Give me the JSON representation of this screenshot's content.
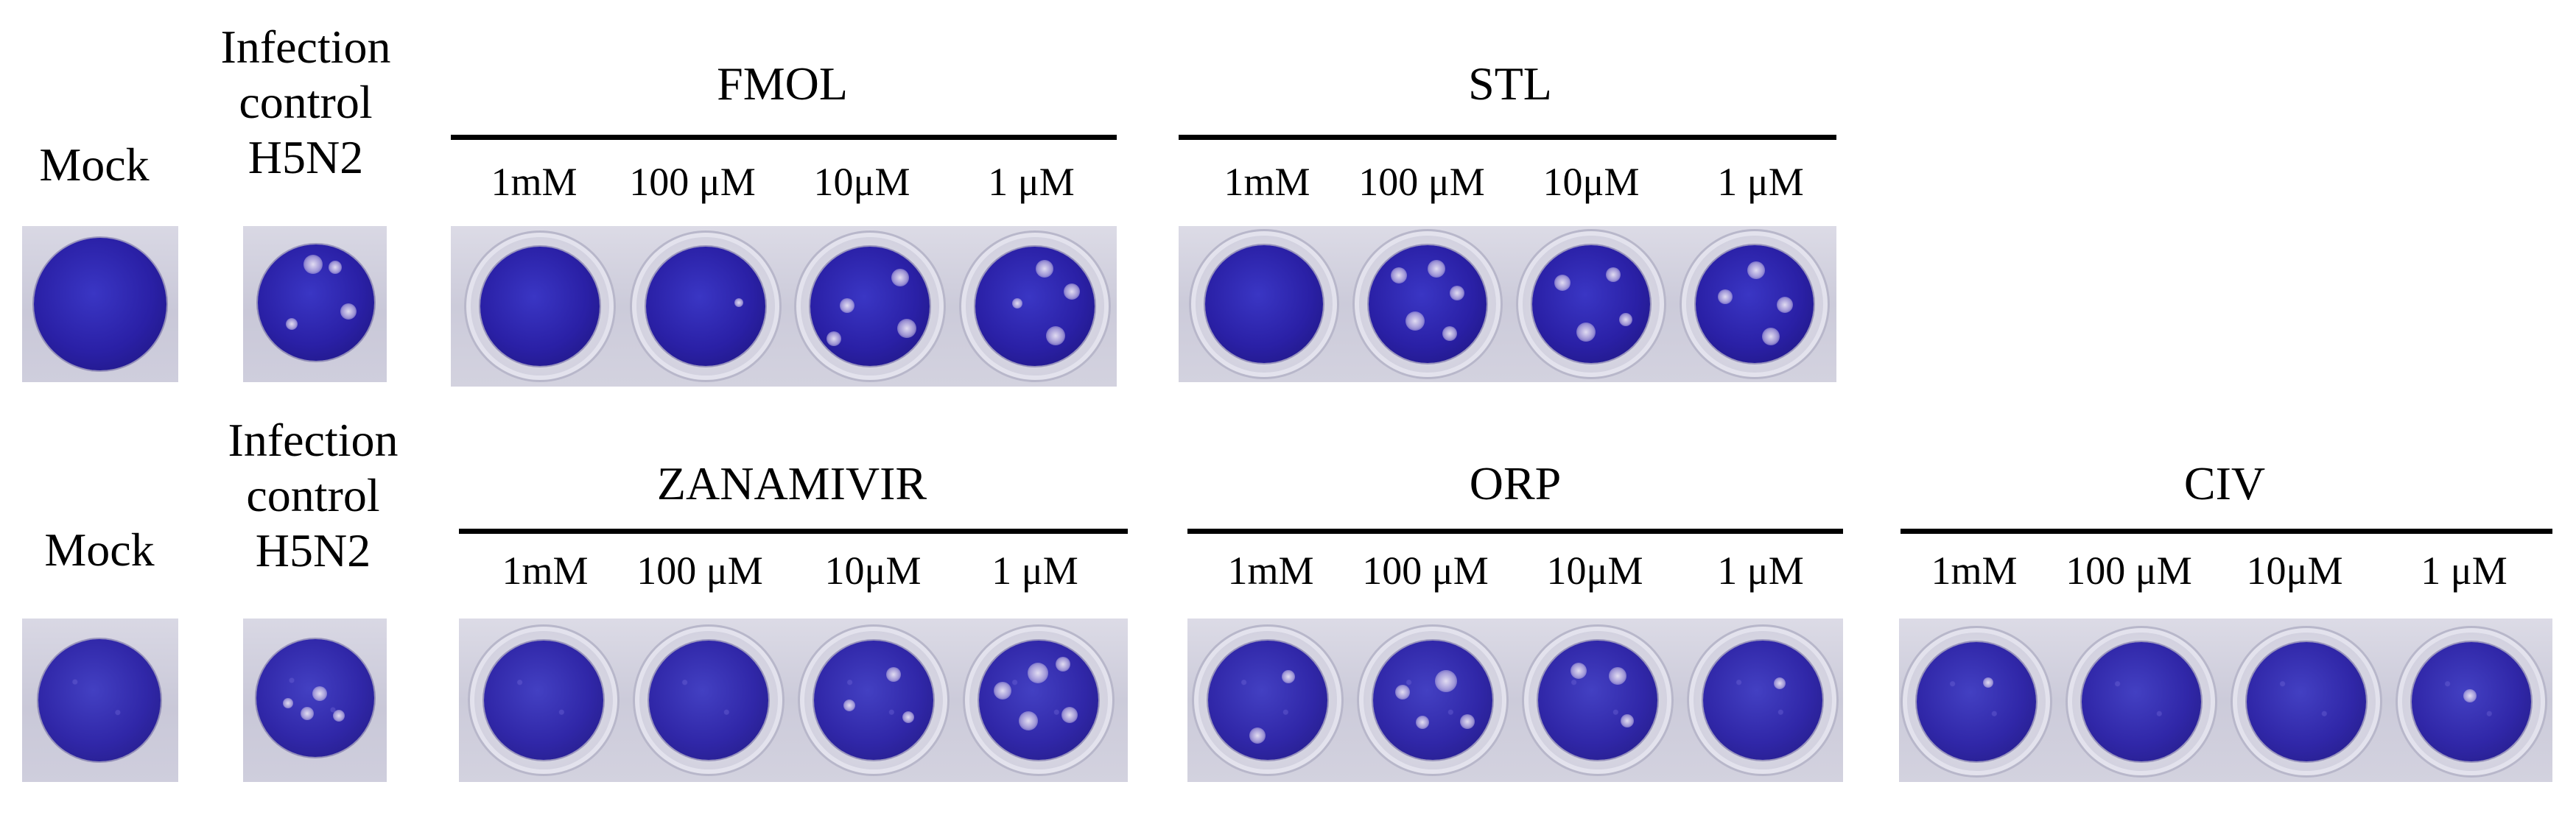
{
  "top_row": {
    "mock_label": "Mock",
    "control_label": [
      "Infection",
      "control",
      "H5N2"
    ],
    "groups": [
      {
        "title": "FMOL",
        "concentrations": [
          "1mM",
          "100 μM",
          "10μM",
          "1 μM"
        ]
      },
      {
        "title": "STL",
        "concentrations": [
          "1mM",
          "100 μM",
          "10μM",
          "1 μM"
        ]
      }
    ]
  },
  "bottom_row": {
    "mock_label": "Mock",
    "control_label": [
      "Infection",
      "control",
      "H5N2"
    ],
    "groups": [
      {
        "title": "ZANAMIVIR",
        "concentrations": [
          "1mM",
          "100 μM",
          "10μM",
          "1 μM"
        ]
      },
      {
        "title": "ORP",
        "concentrations": [
          "1mM",
          "100 μM",
          "10μM",
          "1 μM"
        ]
      },
      {
        "title": "CIV",
        "concentrations": [
          "1mM",
          "100 μM",
          "10μM",
          "1 μM"
        ]
      }
    ]
  },
  "colors": {
    "stain": "#2a20a6",
    "plate_background": "#cccbda"
  }
}
